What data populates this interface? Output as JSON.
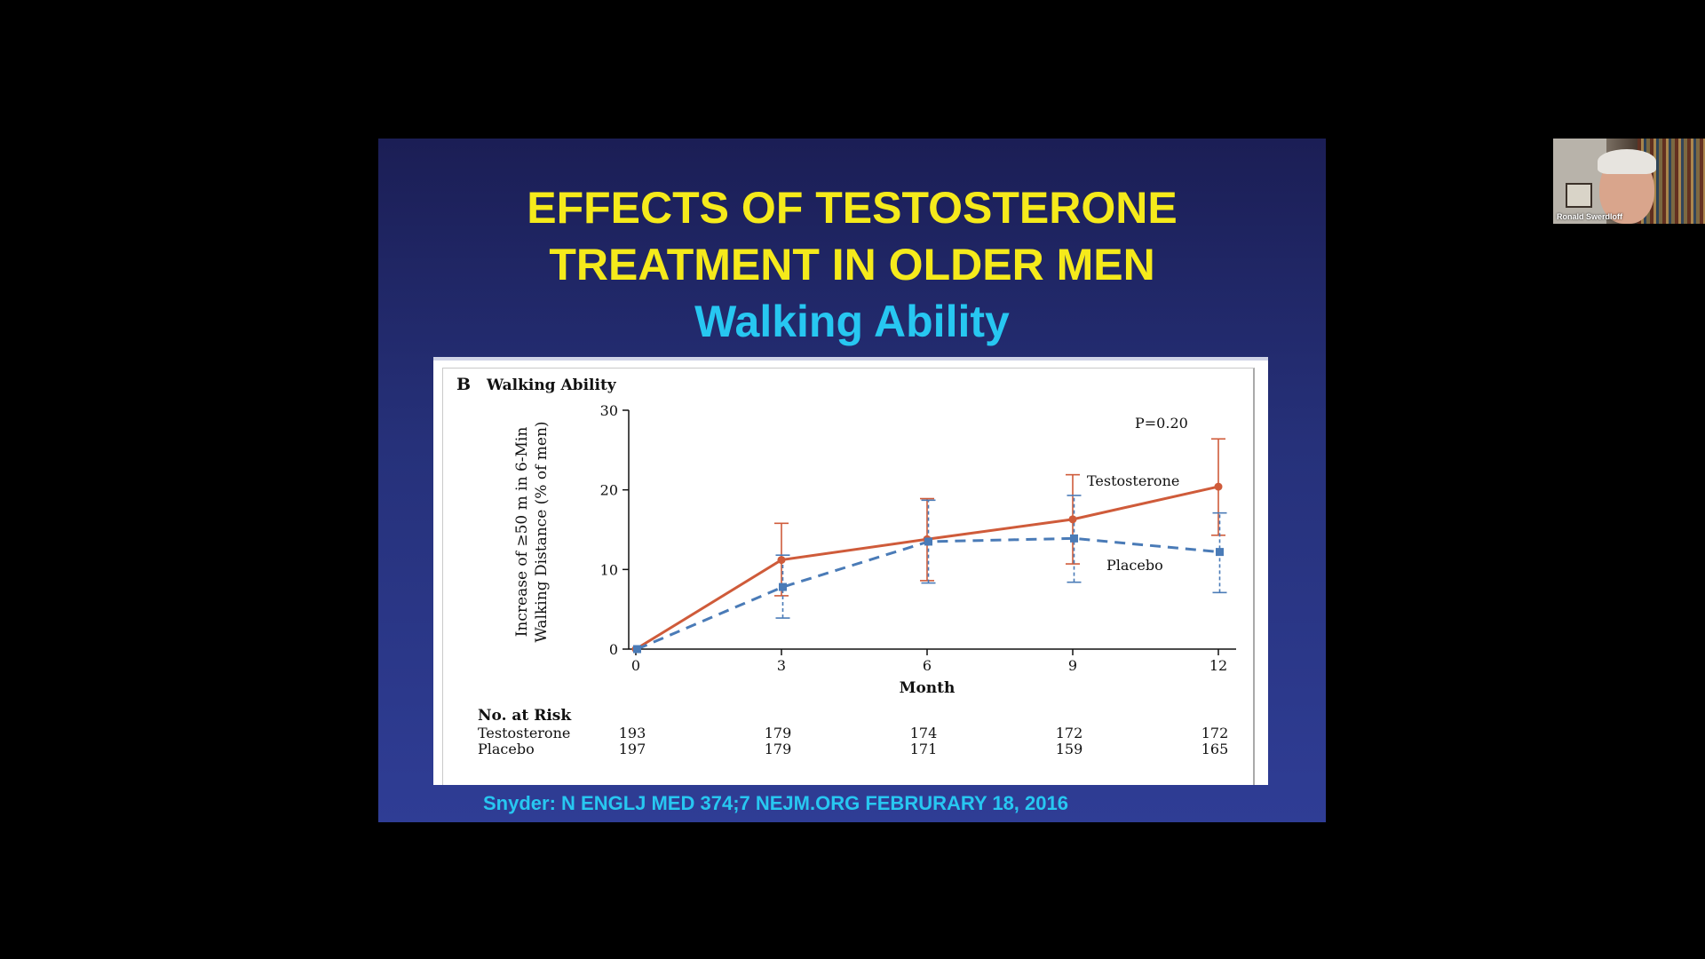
{
  "slide": {
    "title_line1": "EFFECTS OF TESTOSTERONE",
    "title_line2": "TREATMENT IN OLDER MEN",
    "subtitle": "Walking Ability",
    "citation": "Snyder: N ENGLJ MED 374;7 NEJM.ORG FEBRURARY 18, 2016",
    "colors": {
      "title": "#f5ea1b",
      "subtitle": "#27c7f1",
      "background": "#26317a"
    }
  },
  "chart_data": {
    "type": "line",
    "panel_letter": "B",
    "title": "Walking Ability",
    "ylabel_line1": "Increase of ≥50 m in 6-Min",
    "ylabel_line2": "Walking Distance (% of men)",
    "xlabel": "Month",
    "x": [
      0,
      3,
      6,
      9,
      12
    ],
    "xticks": [
      "0",
      "3",
      "6",
      "9",
      "12"
    ],
    "yticks": [
      "0",
      "10",
      "20",
      "30"
    ],
    "ylim": [
      0,
      30
    ],
    "xlim": [
      0,
      12
    ],
    "grid": false,
    "pvalue": "P=0.20",
    "series": [
      {
        "name": "Testosterone",
        "color": "#cf5b3a",
        "style": "solid",
        "marker": "circle",
        "values": [
          0,
          11.2,
          13.8,
          16.3,
          20.4
        ],
        "lower": [
          0,
          6.7,
          8.6,
          10.7,
          14.3
        ],
        "upper": [
          0,
          15.8,
          18.9,
          21.9,
          26.4
        ]
      },
      {
        "name": "Placebo",
        "color": "#4a7bb7",
        "style": "dashed",
        "marker": "square",
        "values": [
          0,
          7.8,
          13.5,
          13.9,
          12.2
        ],
        "lower": [
          0,
          3.9,
          8.3,
          8.4,
          7.1
        ],
        "upper": [
          0,
          11.8,
          18.7,
          19.3,
          17.1
        ]
      }
    ],
    "risk_table": {
      "heading": "No. at Risk",
      "rows": [
        {
          "label": "Testosterone",
          "values": [
            "193",
            "179",
            "174",
            "172",
            "172"
          ]
        },
        {
          "label": "Placebo",
          "values": [
            "197",
            "179",
            "171",
            "159",
            "165"
          ]
        }
      ]
    }
  },
  "webcam": {
    "name": "Ronald Swerdloff"
  }
}
